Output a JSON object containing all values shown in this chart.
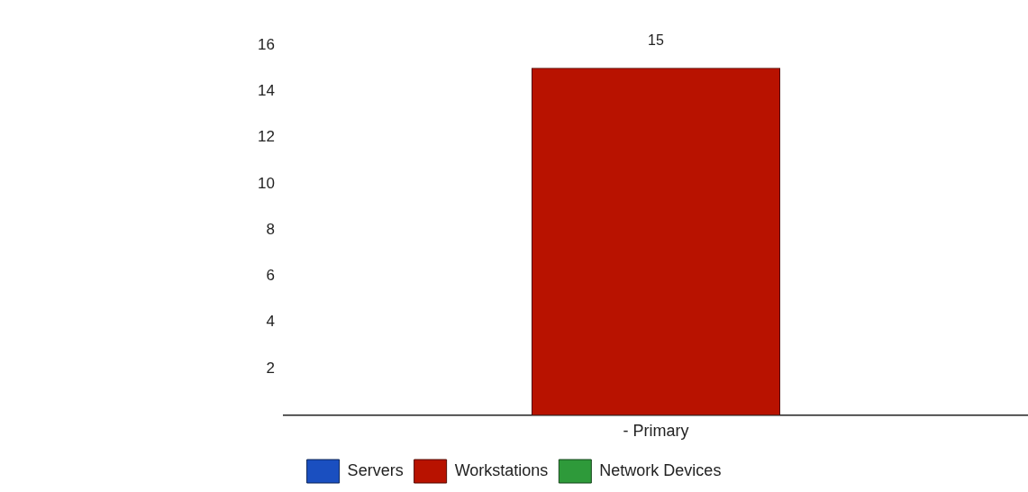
{
  "chart_data": {
    "type": "bar",
    "categories": [
      "- Primary"
    ],
    "series": [
      {
        "name": "Servers",
        "color": "#1a4fc0",
        "values": [
          null
        ]
      },
      {
        "name": "Workstations",
        "color": "#b81200",
        "values": [
          15
        ],
        "value_labels": [
          "15"
        ]
      },
      {
        "name": "Network Devices",
        "color": "#2e9a3a",
        "values": [
          null
        ]
      }
    ],
    "ylim": [
      0,
      16
    ],
    "yticks": [
      2,
      4,
      6,
      8,
      10,
      12,
      14,
      16
    ],
    "grid": false,
    "legend": "bottom"
  }
}
